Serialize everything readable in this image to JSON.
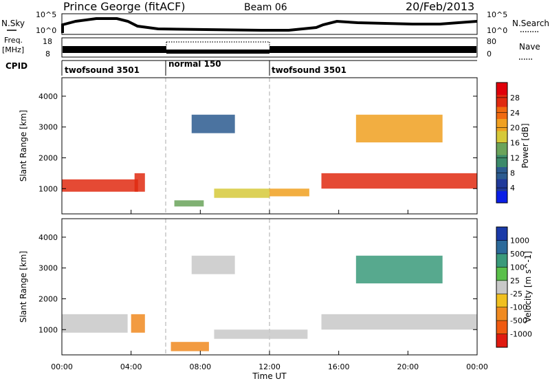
{
  "header": {
    "station": "Prince George (fitACF)",
    "beam": "Beam 06",
    "date": "20/Feb/2013"
  },
  "top_strip": {
    "left_label": "N.Sky",
    "right_label": "N.Search",
    "left_ticks": [
      "10^5",
      "10^0"
    ],
    "right_ticks": [
      "10^5",
      "10^0"
    ]
  },
  "freq_strip": {
    "label_line1": "Freq.",
    "label_line2": "[MHz]",
    "left_ticks": [
      "18",
      "8"
    ],
    "right_ticks": [
      "80",
      "0"
    ],
    "right_label": "Nave"
  },
  "cpid": {
    "label": "CPID",
    "segments": [
      {
        "name": "twofsound 3501",
        "start_hour": 0,
        "end_hour": 6
      },
      {
        "name": "normal 150",
        "start_hour": 6,
        "end_hour": 12
      },
      {
        "name": "twofsound 3501",
        "start_hour": 12,
        "end_hour": 24
      }
    ]
  },
  "power_panel": {
    "ylabel": "Slant Range [km]",
    "yticks": [
      "4000",
      "3000",
      "2000",
      "1000"
    ],
    "colorbar_label": "Power [dB]",
    "colorbar_ticks": [
      "28",
      "24",
      "20",
      "16",
      "12",
      "8",
      "4"
    ],
    "colors": [
      "#0a1ee6",
      "#203a9a",
      "#2c5b8f",
      "#3c8a6a",
      "#6aa35a",
      "#d6c93a",
      "#f0a020",
      "#f06a10",
      "#e02a10",
      "#e0000a"
    ]
  },
  "velocity_panel": {
    "ylabel": "Slant Range [km]",
    "yticks": [
      "4000",
      "3000",
      "2000",
      "1000"
    ],
    "colorbar_label": "Velocity [m s^-1]",
    "colorbar_ticks": [
      "1000",
      "500",
      "100",
      "25",
      "-25",
      "-100",
      "-500",
      "-1000"
    ],
    "colors": [
      "#1a3aa8",
      "#2c6a9a",
      "#3a9a7a",
      "#5ac04a",
      "#c8c8c8",
      "#f0c020",
      "#f08a20",
      "#f05a10",
      "#e01a10"
    ]
  },
  "xaxis": {
    "label": "Time UT",
    "ticks": [
      "00:00",
      "04:00",
      "08:00",
      "12:00",
      "16:00",
      "20:00",
      "00:00"
    ]
  },
  "chart_data": {
    "type": "heatmap",
    "title": "Prince George (fitACF) Beam 06 20/Feb/2013",
    "xlabel": "Time UT",
    "ylabel": "Slant Range [km]",
    "xlim_hours": [
      0,
      24
    ],
    "ylim_km": [
      180,
      4600
    ],
    "power_colorbar": {
      "label": "Power [dB]",
      "range": [
        0,
        30
      ]
    },
    "velocity_colorbar": {
      "label": "Velocity [m s^-1]",
      "range": [
        -1000,
        1000
      ]
    },
    "cpid_changes_hours": [
      6,
      12
    ],
    "regions_power": [
      {
        "t0": 0.0,
        "t1": 4.4,
        "r0": 900,
        "r1": 1300,
        "db": 24
      },
      {
        "t0": 4.2,
        "t1": 4.8,
        "r0": 900,
        "r1": 1500,
        "db": 26
      },
      {
        "t0": 6.5,
        "t1": 8.2,
        "r0": 420,
        "r1": 620,
        "db": 12
      },
      {
        "t0": 7.5,
        "t1": 10.0,
        "r0": 2800,
        "r1": 3400,
        "db": 6
      },
      {
        "t0": 8.8,
        "t1": 12.0,
        "r0": 700,
        "r1": 1000,
        "db": 16
      },
      {
        "t0": 12.0,
        "t1": 14.3,
        "r0": 750,
        "r1": 1000,
        "db": 18
      },
      {
        "t0": 15.0,
        "t1": 24.0,
        "r0": 1000,
        "r1": 1500,
        "db": 26
      },
      {
        "t0": 17.0,
        "t1": 22.0,
        "r0": 2500,
        "r1": 3400,
        "db": 18
      }
    ],
    "regions_velocity": [
      {
        "t0": 0.0,
        "t1": 3.8,
        "r0": 900,
        "r1": 1500,
        "v": 0
      },
      {
        "t0": 4.0,
        "t1": 4.8,
        "r0": 900,
        "r1": 1500,
        "v": -400
      },
      {
        "t0": 6.3,
        "t1": 8.5,
        "r0": 300,
        "r1": 600,
        "v": -150
      },
      {
        "t0": 7.5,
        "t1": 10.0,
        "r0": 2800,
        "r1": 3400,
        "v": 0
      },
      {
        "t0": 8.8,
        "t1": 14.2,
        "r0": 700,
        "r1": 1000,
        "v": 0
      },
      {
        "t0": 15.0,
        "t1": 24.0,
        "r0": 1000,
        "r1": 1500,
        "v": 0
      },
      {
        "t0": 17.0,
        "t1": 22.0,
        "r0": 2500,
        "r1": 3400,
        "v": 200
      }
    ]
  }
}
